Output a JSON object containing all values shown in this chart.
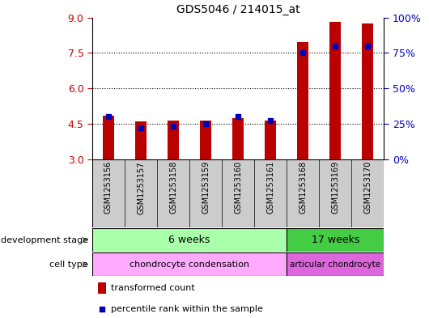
{
  "title": "GDS5046 / 214015_at",
  "samples": [
    "GSM1253156",
    "GSM1253157",
    "GSM1253158",
    "GSM1253159",
    "GSM1253160",
    "GSM1253161",
    "GSM1253168",
    "GSM1253169",
    "GSM1253170"
  ],
  "transformed_counts": [
    4.85,
    4.6,
    4.63,
    4.62,
    4.72,
    4.63,
    7.95,
    8.82,
    8.73
  ],
  "percentile_ranks": [
    30,
    22,
    23,
    25,
    30,
    27,
    75,
    80,
    80
  ],
  "bar_bottom": 3.0,
  "ylim_left": [
    3,
    9
  ],
  "ylim_right": [
    0,
    100
  ],
  "yticks_left": [
    3,
    4.5,
    6,
    7.5,
    9
  ],
  "yticks_right": [
    0,
    25,
    50,
    75,
    100
  ],
  "ytick_labels_right": [
    "0%",
    "25%",
    "50%",
    "75%",
    "100%"
  ],
  "bar_color": "#bb0000",
  "dot_color": "#0000bb",
  "dev_stage_color_1": "#aaffaa",
  "dev_stage_color_2": "#44cc44",
  "cell_type_color_1": "#ffaaff",
  "cell_type_color_2": "#dd66dd",
  "xtick_bg_color": "#cccccc",
  "row_label_dev": "development stage",
  "row_label_cell": "cell type",
  "legend_bar_label": "transformed count",
  "legend_dot_label": "percentile rank within the sample",
  "tick_color_left": "#cc0000",
  "tick_color_right": "#0000cc"
}
